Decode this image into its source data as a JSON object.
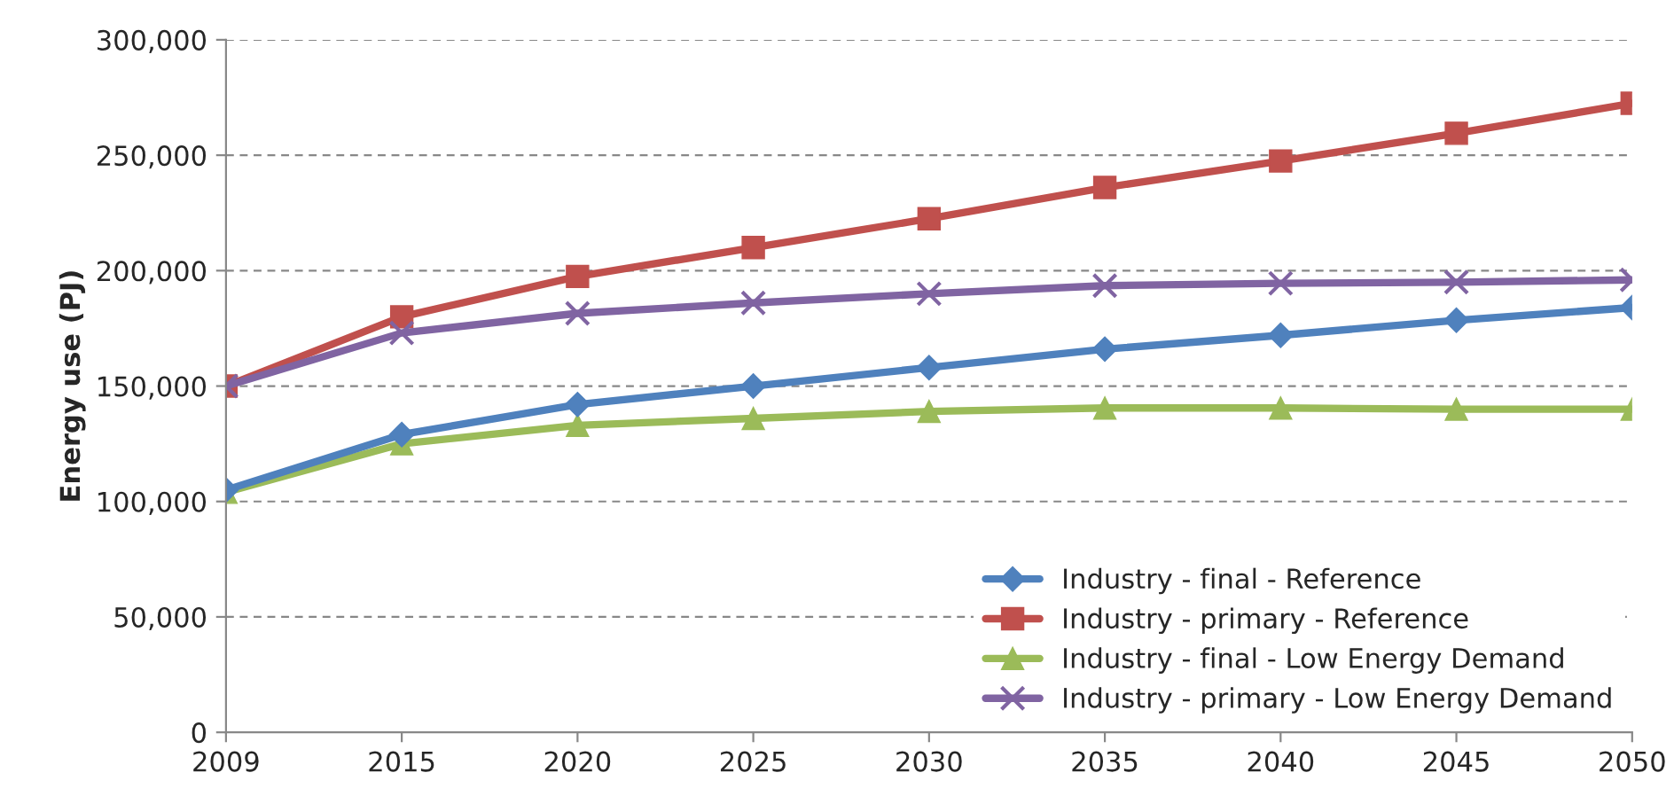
{
  "chart_data": {
    "type": "line",
    "ylabel": "Energy use (PJ)",
    "categories": [
      "2009",
      "2015",
      "2020",
      "2025",
      "2030",
      "2035",
      "2040",
      "2045",
      "2050"
    ],
    "series": [
      {
        "name": "Industry - final - Reference",
        "color": "#4f81bd",
        "marker": "diamond",
        "values": [
          105000,
          129000,
          142000,
          150000,
          158000,
          166000,
          172000,
          178500,
          184000
        ]
      },
      {
        "name": "Industry - primary - Reference",
        "color": "#c0504d",
        "marker": "square",
        "values": [
          150000,
          180000,
          197500,
          210000,
          222500,
          236000,
          247500,
          259500,
          272500
        ]
      },
      {
        "name": "Industry - final - Low Energy Demand",
        "color": "#9bbb59",
        "marker": "triangle",
        "values": [
          104000,
          125000,
          133000,
          136000,
          139000,
          140500,
          140500,
          140000,
          140000
        ]
      },
      {
        "name": "Industry - primary - Low Energy Demand",
        "color": "#8064a2",
        "marker": "cross",
        "values": [
          150000,
          173000,
          181500,
          186000,
          190000,
          193500,
          194500,
          195000,
          196000
        ]
      }
    ],
    "ylim": [
      0,
      300000
    ],
    "yticks": [
      {
        "value": 0,
        "label": "0"
      },
      {
        "value": 50000,
        "label": "50,000"
      },
      {
        "value": 100000,
        "label": "100,000"
      },
      {
        "value": 150000,
        "label": "150,000"
      },
      {
        "value": 200000,
        "label": "200,000"
      },
      {
        "value": 250000,
        "label": "250,000"
      },
      {
        "value": 300000,
        "label": "300,000"
      }
    ],
    "grid": "y",
    "legend": "bottom right",
    "line_style": "solid"
  }
}
